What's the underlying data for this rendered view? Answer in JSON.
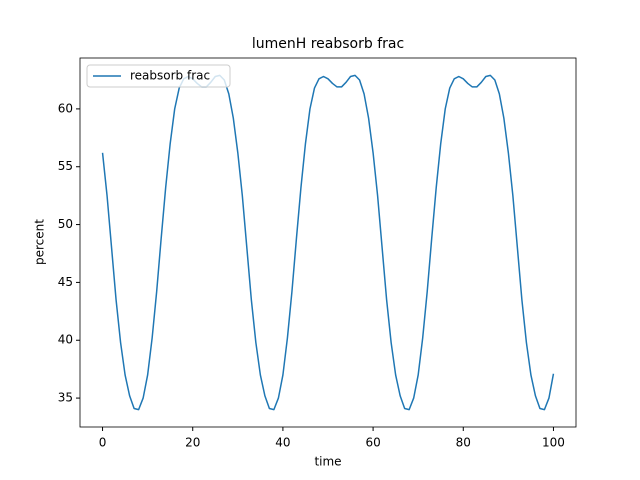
{
  "chart_data": {
    "type": "line",
    "title": "lumenH reabsorb frac",
    "x_label": "time",
    "y_label": "percent",
    "x": [
      0,
      1,
      2,
      3,
      4,
      5,
      6,
      7,
      8,
      9,
      10,
      11,
      12,
      13,
      14,
      15,
      16,
      17,
      18,
      19,
      20,
      21,
      22,
      23,
      24,
      25,
      26,
      27,
      28,
      29,
      30,
      31,
      32,
      33,
      34,
      35,
      36,
      37,
      38,
      39,
      40,
      41,
      42,
      43,
      44,
      45,
      46,
      47,
      48,
      49,
      50,
      51,
      52,
      53,
      54,
      55,
      56,
      57,
      58,
      59,
      60,
      61,
      62,
      63,
      64,
      65,
      66,
      67,
      68,
      69,
      70,
      71,
      72,
      73,
      74,
      75,
      76,
      77,
      78,
      79,
      80,
      81,
      82,
      83,
      84,
      85,
      86,
      87,
      88,
      89,
      90,
      91,
      92,
      93,
      94,
      95,
      96,
      97,
      98,
      99,
      100
    ],
    "series": [
      {
        "name": "reabsorb frac",
        "color": "#1f77b4",
        "values": [
          56.2,
          52.5,
          48.0,
          43.5,
          39.8,
          37.0,
          35.2,
          34.1,
          34.0,
          35.0,
          37.0,
          40.2,
          44.2,
          48.8,
          53.2,
          57.0,
          60.0,
          61.8,
          62.6,
          62.8,
          62.6,
          62.2,
          61.9,
          61.9,
          62.3,
          62.8,
          62.9,
          62.5,
          61.3,
          59.2,
          56.2,
          52.5,
          48.0,
          43.5,
          39.8,
          37.0,
          35.2,
          34.1,
          34.0,
          35.0,
          37.0,
          40.2,
          44.2,
          48.8,
          53.2,
          57.0,
          60.0,
          61.8,
          62.6,
          62.8,
          62.6,
          62.2,
          61.9,
          61.9,
          62.3,
          62.8,
          62.9,
          62.5,
          61.3,
          59.2,
          56.2,
          52.5,
          48.0,
          43.5,
          39.8,
          37.0,
          35.2,
          34.1,
          34.0,
          35.0,
          37.0,
          40.2,
          44.2,
          48.8,
          53.2,
          57.0,
          60.0,
          61.8,
          62.6,
          62.8,
          62.6,
          62.2,
          61.9,
          61.9,
          62.3,
          62.8,
          62.9,
          62.5,
          61.3,
          59.2,
          56.2,
          52.5,
          48.0,
          43.5,
          39.8,
          37.0,
          35.2,
          34.1,
          34.0,
          35.0,
          37.1
        ]
      }
    ],
    "xlim": [
      -5,
      105
    ],
    "xticks": [
      0,
      20,
      40,
      60,
      80,
      100
    ],
    "ylim": [
      32.5,
      64.4
    ],
    "yticks": [
      35,
      40,
      45,
      50,
      55,
      60
    ],
    "legend": "upper left",
    "grid": false
  }
}
